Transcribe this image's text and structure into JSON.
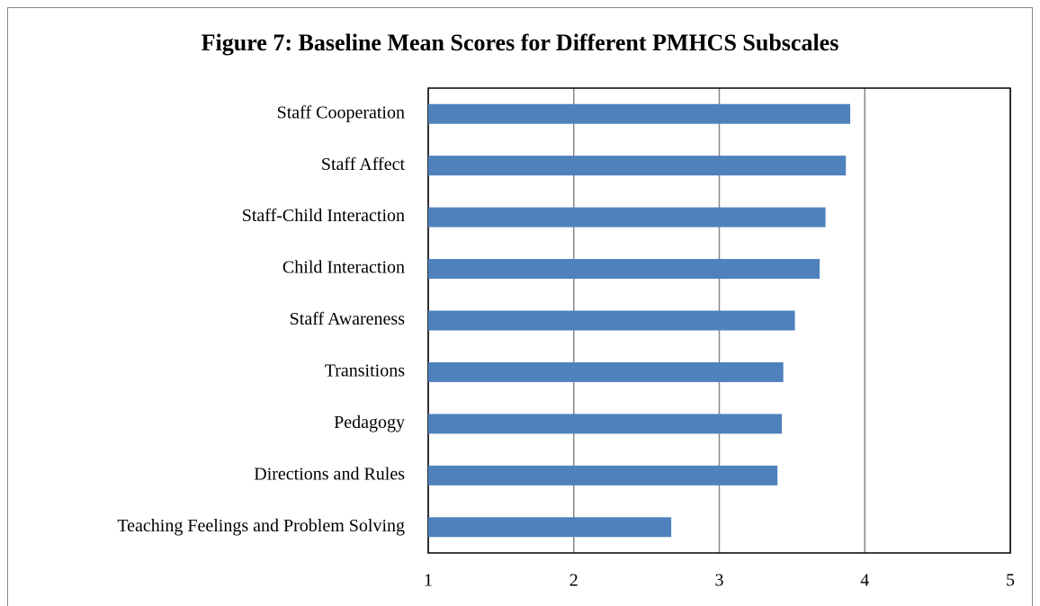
{
  "chart_data": {
    "type": "bar",
    "orientation": "horizontal",
    "title": "Figure 7: Baseline Mean Scores for Different PMHCS Subscales",
    "categories": [
      "Staff Cooperation",
      "Staff Affect",
      "Staff-Child Interaction",
      "Child Interaction",
      "Staff Awareness",
      "Transitions",
      "Pedagogy",
      "Directions and Rules",
      "Teaching Feelings and Problem Solving"
    ],
    "values": [
      3.9,
      3.87,
      3.73,
      3.69,
      3.52,
      3.44,
      3.43,
      3.4,
      2.67
    ],
    "color": "#4f81bd",
    "xlim": [
      1,
      5
    ],
    "xticks": [
      1,
      2,
      3,
      4,
      5
    ],
    "grid": true
  }
}
